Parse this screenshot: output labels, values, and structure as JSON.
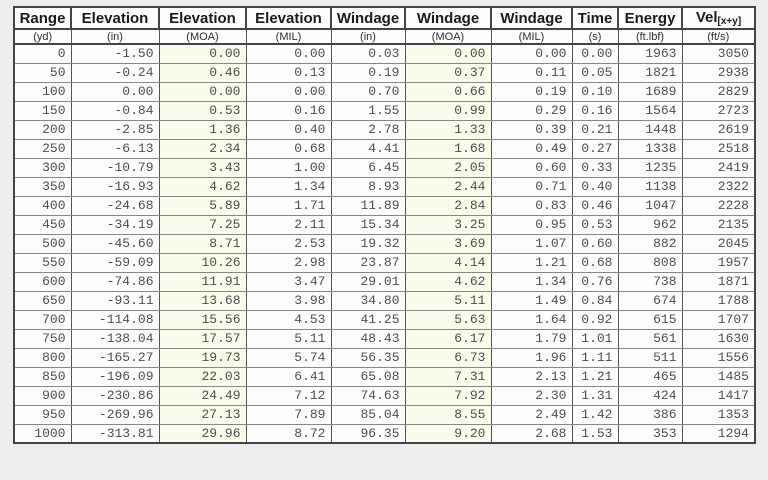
{
  "table": {
    "columns": [
      {
        "label": "Range",
        "unit": "(yd)"
      },
      {
        "label": "Elevation",
        "unit": "(in)"
      },
      {
        "label": "Elevation",
        "unit": "(MOA)"
      },
      {
        "label": "Elevation",
        "unit": "(MIL)"
      },
      {
        "label": "Windage",
        "unit": "(in)"
      },
      {
        "label": "Windage",
        "unit": "(MOA)"
      },
      {
        "label": "Windage",
        "unit": "(MIL)"
      },
      {
        "label": "Time",
        "unit": "(s)"
      },
      {
        "label": "Energy",
        "unit": "(ft.lbf)"
      },
      {
        "label": "Vel",
        "label_sub": "[x+y]",
        "unit": "(ft/s)"
      }
    ],
    "rows": [
      [
        "0",
        "-1.50",
        "0.00",
        "0.00",
        "0.03",
        "0.00",
        "0.00",
        "0.00",
        "1963",
        "3050"
      ],
      [
        "50",
        "-0.24",
        "0.46",
        "0.13",
        "0.19",
        "0.37",
        "0.11",
        "0.05",
        "1821",
        "2938"
      ],
      [
        "100",
        "0.00",
        "0.00",
        "0.00",
        "0.70",
        "0.66",
        "0.19",
        "0.10",
        "1689",
        "2829"
      ],
      [
        "150",
        "-0.84",
        "0.53",
        "0.16",
        "1.55",
        "0.99",
        "0.29",
        "0.16",
        "1564",
        "2723"
      ],
      [
        "200",
        "-2.85",
        "1.36",
        "0.40",
        "2.78",
        "1.33",
        "0.39",
        "0.21",
        "1448",
        "2619"
      ],
      [
        "250",
        "-6.13",
        "2.34",
        "0.68",
        "4.41",
        "1.68",
        "0.49",
        "0.27",
        "1338",
        "2518"
      ],
      [
        "300",
        "-10.79",
        "3.43",
        "1.00",
        "6.45",
        "2.05",
        "0.60",
        "0.33",
        "1235",
        "2419"
      ],
      [
        "350",
        "-16.93",
        "4.62",
        "1.34",
        "8.93",
        "2.44",
        "0.71",
        "0.40",
        "1138",
        "2322"
      ],
      [
        "400",
        "-24.68",
        "5.89",
        "1.71",
        "11.89",
        "2.84",
        "0.83",
        "0.46",
        "1047",
        "2228"
      ],
      [
        "450",
        "-34.19",
        "7.25",
        "2.11",
        "15.34",
        "3.25",
        "0.95",
        "0.53",
        "962",
        "2135"
      ],
      [
        "500",
        "-45.60",
        "8.71",
        "2.53",
        "19.32",
        "3.69",
        "1.07",
        "0.60",
        "882",
        "2045"
      ],
      [
        "550",
        "-59.09",
        "10.26",
        "2.98",
        "23.87",
        "4.14",
        "1.21",
        "0.68",
        "808",
        "1957"
      ],
      [
        "600",
        "-74.86",
        "11.91",
        "3.47",
        "29.01",
        "4.62",
        "1.34",
        "0.76",
        "738",
        "1871"
      ],
      [
        "650",
        "-93.11",
        "13.68",
        "3.98",
        "34.80",
        "5.11",
        "1.49",
        "0.84",
        "674",
        "1788"
      ],
      [
        "700",
        "-114.08",
        "15.56",
        "4.53",
        "41.25",
        "5.63",
        "1.64",
        "0.92",
        "615",
        "1707"
      ],
      [
        "750",
        "-138.04",
        "17.57",
        "5.11",
        "48.43",
        "6.17",
        "1.79",
        "1.01",
        "561",
        "1630"
      ],
      [
        "800",
        "-165.27",
        "19.73",
        "5.74",
        "56.35",
        "6.73",
        "1.96",
        "1.11",
        "511",
        "1556"
      ],
      [
        "850",
        "-196.09",
        "22.03",
        "6.41",
        "65.08",
        "7.31",
        "2.13",
        "1.21",
        "465",
        "1485"
      ],
      [
        "900",
        "-230.86",
        "24.49",
        "7.12",
        "74.63",
        "7.92",
        "2.30",
        "1.31",
        "424",
        "1417"
      ],
      [
        "950",
        "-269.96",
        "27.13",
        "7.89",
        "85.04",
        "8.55",
        "2.49",
        "1.42",
        "386",
        "1353"
      ],
      [
        "1000",
        "-313.81",
        "29.96",
        "8.72",
        "96.35",
        "9.20",
        "2.68",
        "1.53",
        "353",
        "1294"
      ]
    ],
    "tinted_column_indexes": [
      2,
      5
    ]
  },
  "colors": {
    "page_background": "#ededed",
    "cell_background": "#fdfdfd",
    "tinted_cell_background": "#fbfbec",
    "border_dark": "#444444",
    "border_light": "#878787",
    "header_text": "#1b1b1b",
    "data_text": "#4e4e4e"
  }
}
